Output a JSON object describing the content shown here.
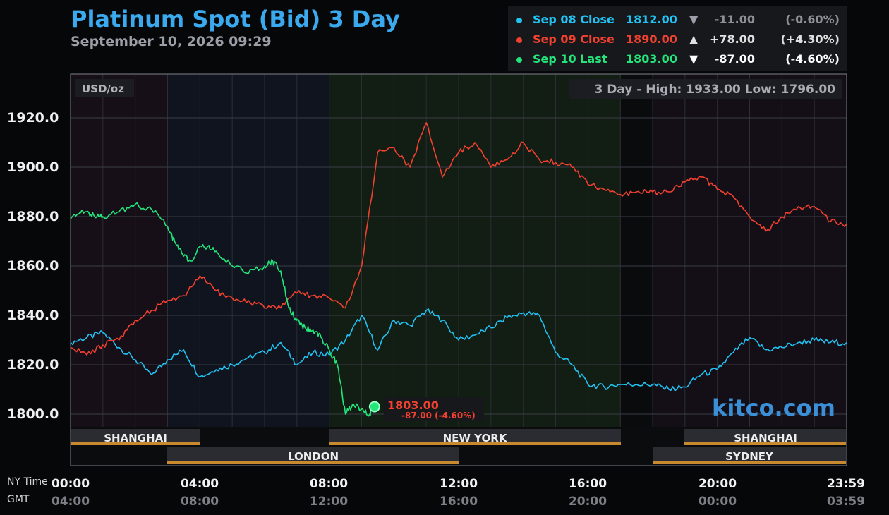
{
  "header": {
    "title": "Platinum Spot (Bid) 3 Day",
    "subtitle": "September 10, 2026 09:29"
  },
  "legend": [
    {
      "label": "Sep 08 Close",
      "value": "1812.00",
      "arrow": "▼",
      "change": "-11.00",
      "pct": "(-0.60%)",
      "color": "#22c3f3",
      "dim": true
    },
    {
      "label": "Sep 09 Close",
      "value": "1890.00",
      "arrow": "▲",
      "change": "+78.00",
      "pct": "(+4.30%)",
      "color": "#f2412f",
      "dim": false
    },
    {
      "label": "Sep 10 Last",
      "value": "1803.00",
      "arrow": "▼",
      "change": "-87.00",
      "pct": "(-4.60%)",
      "color": "#23e57a",
      "dim": false
    }
  ],
  "unit_label": "USD/oz",
  "range_label": "3 Day - High: 1933.00  Low: 1796.00",
  "last_callout": {
    "price": "1803.00",
    "change": "-87.00 (-4.60%)"
  },
  "watermark": "kitco.com",
  "sessions": [
    "SHANGHAI",
    "LONDON",
    "NEW YORK",
    "SHANGHAI",
    "SYDNEY"
  ],
  "axis_names": {
    "ny": "NY Time",
    "gmt": "GMT"
  },
  "colors": {
    "sep08": "#22c3f3",
    "sep09": "#f2412f",
    "sep10": "#23e57a",
    "title": "#3aa9ee",
    "session_bar": "#c8892f"
  },
  "chart_data": {
    "type": "line",
    "title": "Platinum Spot (Bid) 3 Day",
    "ylabel": "USD/oz",
    "ylim": [
      1790,
      1940
    ],
    "yticks": [
      "1800.0",
      "1820.0",
      "1840.0",
      "1860.0",
      "1880.0",
      "1900.0",
      "1920.0"
    ],
    "x_unit": "hours (NY Time)",
    "xlim": [
      0,
      24
    ],
    "xticks_ny": [
      "00:00",
      "04:00",
      "08:00",
      "12:00",
      "16:00",
      "20:00",
      "23:59"
    ],
    "xticks_gmt": [
      "04:00",
      "08:00",
      "12:00",
      "16:00",
      "20:00",
      "00:00",
      "03:59"
    ],
    "series": [
      {
        "name": "Sep 08",
        "x": [
          0,
          0.5,
          1,
          1.5,
          2,
          2.5,
          3,
          3.5,
          4,
          4.5,
          5,
          5.5,
          6,
          6.5,
          7,
          7.5,
          8,
          8.5,
          9,
          9.5,
          10,
          10.5,
          11,
          11.5,
          12,
          12.5,
          13,
          13.5,
          14,
          14.5,
          15,
          15.5,
          16,
          16.5,
          17,
          17.5,
          18,
          18.5,
          19,
          19.5,
          20,
          20.5,
          21,
          21.5,
          22,
          22.5,
          23,
          23.5,
          24
        ],
        "values": [
          1829,
          1831,
          1833,
          1827,
          1822,
          1816,
          1822,
          1826,
          1815,
          1818,
          1820,
          1823,
          1825,
          1829,
          1820,
          1825,
          1824,
          1830,
          1840,
          1826,
          1838,
          1836,
          1842,
          1838,
          1830,
          1832,
          1835,
          1839,
          1841,
          1840,
          1825,
          1820,
          1812,
          1811,
          1812,
          1812,
          1812,
          1810,
          1811,
          1816,
          1818,
          1825,
          1831,
          1826,
          1827,
          1829,
          1830,
          1829,
          1829
        ]
      },
      {
        "name": "Sep 09",
        "x": [
          0,
          0.5,
          1,
          1.5,
          2,
          2.5,
          3,
          3.5,
          4,
          4.5,
          5,
          5.5,
          6,
          6.5,
          7,
          7.5,
          8,
          8.5,
          9,
          9.5,
          10,
          10.5,
          11,
          11.5,
          12,
          12.5,
          13,
          13.5,
          14,
          14.5,
          15,
          15.5,
          16,
          16.5,
          17,
          17.5,
          18,
          18.5,
          19,
          19.5,
          20,
          20.5,
          21,
          21.5,
          22,
          22.5,
          23,
          23.5,
          24
        ],
        "values": [
          1827,
          1824,
          1828,
          1830,
          1838,
          1842,
          1846,
          1848,
          1856,
          1850,
          1847,
          1846,
          1843,
          1843,
          1849,
          1848,
          1847,
          1843,
          1860,
          1906,
          1908,
          1900,
          1918,
          1896,
          1906,
          1910,
          1900,
          1903,
          1910,
          1903,
          1902,
          1900,
          1893,
          1891,
          1889,
          1890,
          1890,
          1890,
          1894,
          1896,
          1891,
          1888,
          1880,
          1874,
          1880,
          1884,
          1884,
          1878,
          1877
        ]
      },
      {
        "name": "Sep 10",
        "x": [
          0,
          0.25,
          0.5,
          0.75,
          1,
          1.5,
          2,
          2.5,
          3,
          3.25,
          3.5,
          3.75,
          4,
          4.25,
          4.5,
          5,
          5.5,
          6,
          6.25,
          6.5,
          6.75,
          7,
          7.25,
          7.5,
          7.75,
          8,
          8.25,
          8.5,
          8.75,
          9,
          9.25,
          9.4
        ],
        "values": [
          1879,
          1881,
          1882,
          1880,
          1880,
          1882,
          1885,
          1883,
          1876,
          1869,
          1864,
          1862,
          1868,
          1868,
          1866,
          1860,
          1857,
          1860,
          1862,
          1858,
          1843,
          1838,
          1835,
          1834,
          1831,
          1826,
          1820,
          1800,
          1804,
          1802,
          1800,
          1803
        ]
      }
    ]
  }
}
